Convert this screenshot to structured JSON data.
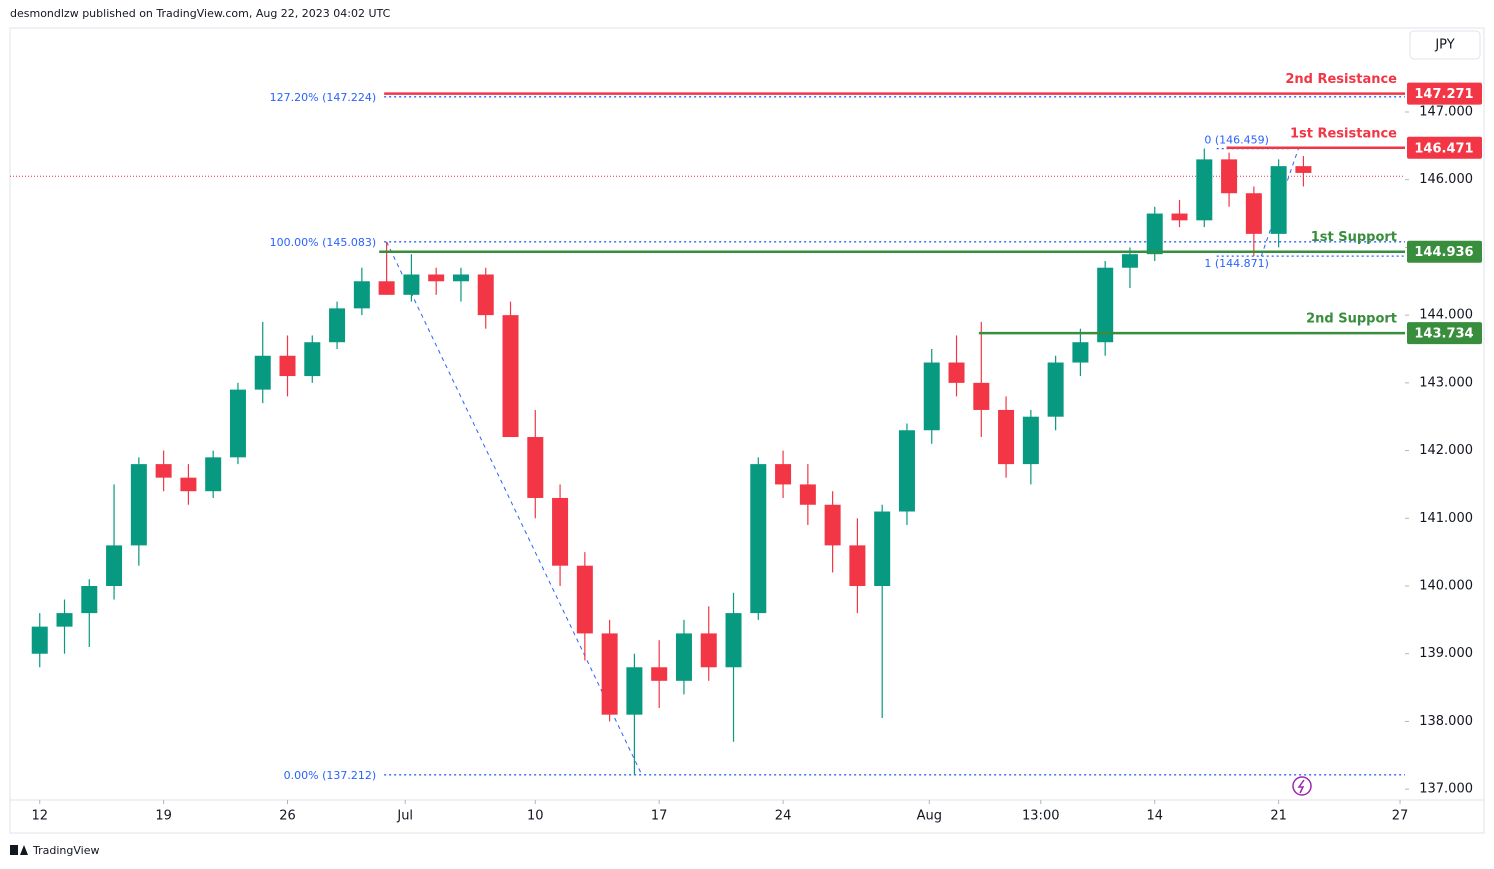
{
  "header": "desmondlzw published on TradingView.com, Aug 22, 2023 04:02 UTC",
  "footer": "TradingView",
  "chart_data": {
    "type": "candlestick",
    "currency": "JPY",
    "categories": [
      null,
      null,
      null,
      null,
      null,
      null,
      null,
      null,
      null,
      null,
      null,
      null,
      null,
      null,
      null,
      null,
      null,
      null,
      null,
      null,
      null,
      null,
      null,
      null,
      null,
      null,
      null,
      null,
      null,
      null,
      null,
      null,
      null,
      null,
      null,
      null,
      null,
      null,
      null,
      null,
      null,
      null,
      null,
      null,
      null,
      null,
      null,
      null,
      null,
      null,
      null,
      null
    ],
    "open": [
      139.0,
      139.4,
      139.6,
      140.0,
      140.6,
      141.8,
      141.6,
      141.4,
      141.9,
      142.9,
      143.4,
      143.1,
      143.6,
      144.1,
      144.5,
      144.3,
      144.6,
      144.5,
      144.6,
      144.0,
      142.2,
      141.3,
      140.3,
      139.3,
      138.1,
      138.8,
      138.6,
      139.3,
      138.8,
      139.6,
      141.8,
      141.5,
      141.2,
      140.6,
      140.0,
      141.1,
      142.3,
      143.3,
      143.0,
      142.6,
      141.8,
      142.5,
      143.3,
      143.6,
      144.7,
      144.9,
      145.5,
      145.4,
      146.3,
      145.8,
      145.2,
      146.2
    ],
    "high": [
      139.6,
      139.8,
      140.1,
      141.5,
      141.9,
      142.0,
      141.8,
      142.0,
      143.0,
      143.9,
      143.7,
      143.7,
      144.2,
      144.7,
      145.08,
      144.9,
      144.7,
      144.7,
      144.7,
      144.2,
      142.6,
      141.5,
      140.5,
      139.5,
      139.0,
      139.2,
      139.5,
      139.7,
      139.9,
      141.9,
      142.0,
      141.8,
      141.4,
      141.0,
      141.2,
      142.4,
      143.5,
      143.7,
      143.9,
      142.8,
      142.6,
      143.4,
      143.8,
      144.8,
      145.0,
      145.6,
      145.7,
      146.46,
      146.4,
      145.9,
      146.3,
      146.35
    ],
    "low": [
      138.8,
      139.0,
      139.1,
      139.8,
      140.3,
      141.4,
      141.2,
      141.3,
      141.8,
      142.7,
      142.8,
      143.0,
      143.5,
      144.0,
      144.3,
      144.2,
      144.3,
      144.2,
      143.8,
      142.2,
      141.0,
      140.0,
      138.9,
      138.0,
      137.21,
      138.2,
      138.4,
      138.6,
      137.7,
      139.5,
      141.3,
      140.9,
      140.2,
      139.6,
      138.05,
      140.9,
      142.1,
      142.8,
      142.2,
      141.6,
      141.5,
      142.3,
      143.1,
      143.4,
      144.4,
      144.8,
      145.3,
      145.3,
      145.6,
      144.87,
      145.0,
      145.9
    ],
    "close": [
      139.4,
      139.6,
      140.0,
      140.6,
      141.8,
      141.6,
      141.4,
      141.9,
      142.9,
      143.4,
      143.1,
      143.6,
      144.1,
      144.5,
      144.3,
      144.6,
      144.5,
      144.6,
      144.0,
      142.2,
      141.3,
      140.3,
      139.3,
      138.1,
      138.8,
      138.6,
      139.3,
      138.8,
      139.6,
      141.8,
      141.5,
      141.2,
      140.6,
      140.0,
      141.1,
      142.3,
      143.3,
      143.0,
      142.6,
      141.8,
      142.5,
      143.3,
      143.6,
      144.7,
      144.9,
      145.5,
      145.4,
      146.3,
      145.8,
      145.2,
      146.2,
      146.1
    ],
    "up_color": "#089981",
    "down_color": "#f23645",
    "xlim": [
      -1.2,
      55.1
    ],
    "xticks": [
      {
        "value": 0,
        "label": "12"
      },
      {
        "value": 5,
        "label": "19"
      },
      {
        "value": 10,
        "label": "26"
      },
      {
        "value": 14.75,
        "label": "Jul"
      },
      {
        "value": 20,
        "label": "10"
      },
      {
        "value": 25,
        "label": "17"
      },
      {
        "value": 30,
        "label": "24"
      },
      {
        "value": 35.9,
        "label": "Aug"
      },
      {
        "value": 40.4,
        "label": "13:00"
      },
      {
        "value": 45,
        "label": "14"
      },
      {
        "value": 50,
        "label": "21"
      },
      {
        "value": 54.9,
        "label": "27"
      }
    ],
    "ylim": [
      136.84,
      148.24
    ],
    "yticks": [
      {
        "value": 137,
        "label": "137.000"
      },
      {
        "value": 138,
        "label": "138.000"
      },
      {
        "value": 139,
        "label": "139.000"
      },
      {
        "value": 140,
        "label": "140.000"
      },
      {
        "value": 141,
        "label": "141.000"
      },
      {
        "value": 142,
        "label": "142.000"
      },
      {
        "value": 143,
        "label": "143.000"
      },
      {
        "value": 144,
        "label": "144.000"
      },
      {
        "value": 145,
        "label": "145.000"
      },
      {
        "value": 146,
        "label": "146.000"
      },
      {
        "value": 147,
        "label": "147.000"
      }
    ],
    "levels": [
      {
        "name": "2nd Resistance",
        "value": 147.271,
        "color": "#f23645"
      },
      {
        "name": "1st Resistance",
        "value": 146.471,
        "color": "#f23645"
      },
      {
        "name": "1st Support",
        "value": 144.936,
        "color": "#388e3c"
      },
      {
        "name": "2nd Support",
        "value": 143.734,
        "color": "#388e3c"
      }
    ],
    "fib_levels": [
      {
        "label": "127.20% (147.224)",
        "value": 147.224
      },
      {
        "label": "100.00% (145.083)",
        "value": 145.083
      },
      {
        "label": "0.00% (137.212)",
        "value": 137.212
      },
      {
        "label": "0 (146.459)",
        "value": 146.459
      },
      {
        "label": "1 (144.871)",
        "value": 144.871
      }
    ],
    "fib_color": "#2962ff",
    "last_price": 146.05
  }
}
